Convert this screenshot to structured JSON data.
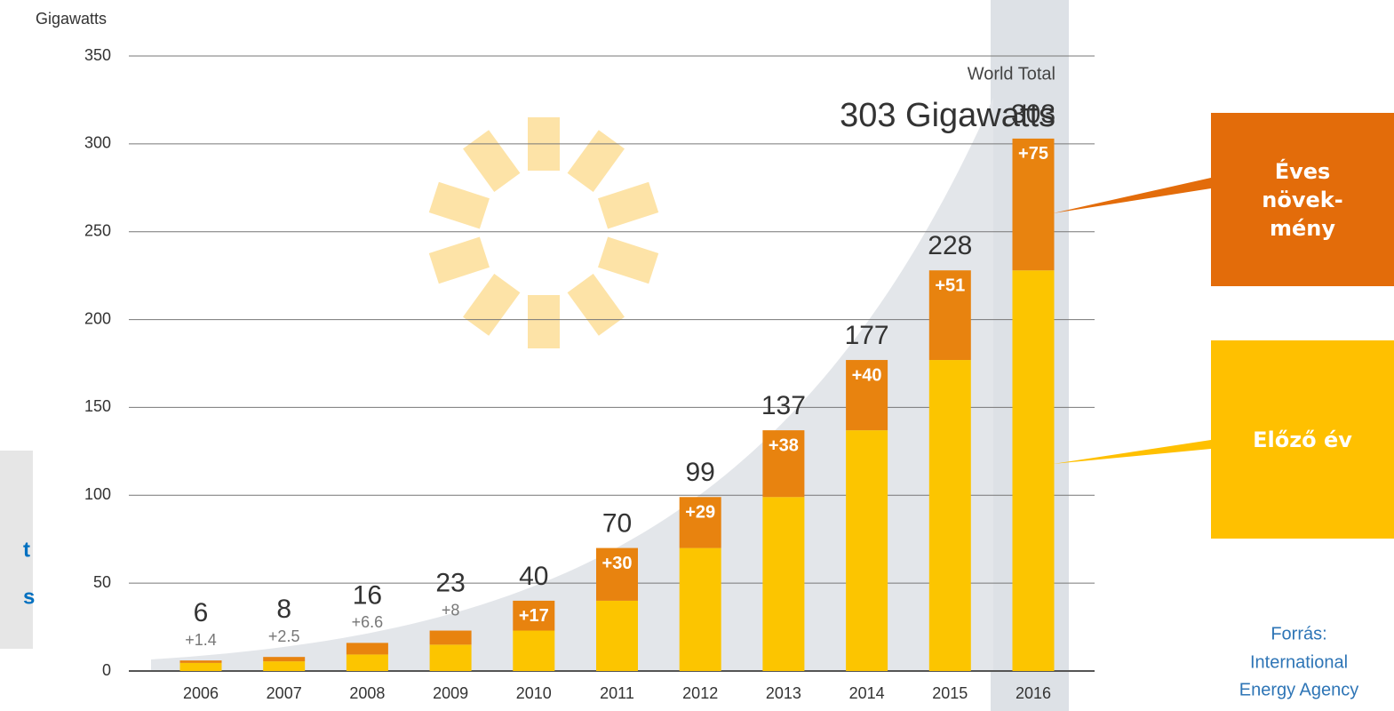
{
  "chart_data": {
    "type": "stacked_bar",
    "y_label": "Gigawatts",
    "annotation_title": "World Total",
    "annotation_value": "303 Gigawatts",
    "categories": [
      "2006",
      "2007",
      "2008",
      "2009",
      "2010",
      "2011",
      "2012",
      "2013",
      "2014",
      "2015",
      "2016"
    ],
    "highlight_category": "2016",
    "series": [
      {
        "name": "Előző év",
        "color": "#fcc500",
        "values": [
          4.6,
          5.5,
          9.4,
          15,
          23,
          40,
          70,
          99,
          137,
          177,
          228
        ]
      },
      {
        "name": "Éves növek-mény",
        "color": "#e8830f",
        "values": [
          1.4,
          2.5,
          6.6,
          8,
          17,
          30,
          29,
          38,
          40,
          51,
          75
        ],
        "value_labels": [
          "+1.4",
          "+2.5",
          "+6.6",
          "+8",
          "+17",
          "+30",
          "+29",
          "+38",
          "+40",
          "+51",
          "+75"
        ]
      }
    ],
    "totals": [
      6,
      8,
      16,
      23,
      40,
      70,
      99,
      137,
      177,
      228,
      303
    ],
    "ylim": [
      0,
      350
    ],
    "yticks": [
      0,
      50,
      100,
      150,
      200,
      250,
      300,
      350
    ],
    "grid": true
  },
  "cropped_note_lines": [
    "t",
    "s"
  ],
  "source_lines": [
    "Forrás:",
    "International",
    "Energy Agency"
  ]
}
